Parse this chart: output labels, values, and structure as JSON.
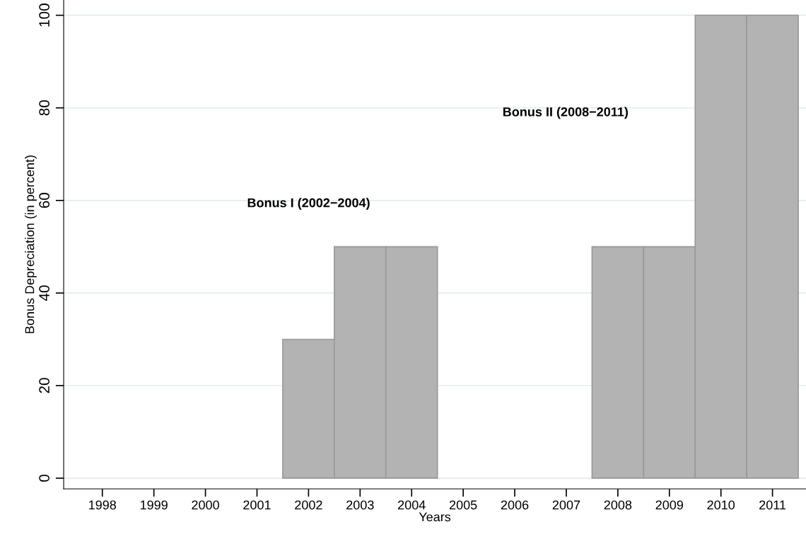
{
  "chart_data": {
    "type": "bar",
    "xlabel": "Years",
    "ylabel": "Bonus Depreciation (in percent)",
    "x": [
      1998,
      1999,
      2000,
      2001,
      2002,
      2003,
      2004,
      2005,
      2006,
      2007,
      2008,
      2009,
      2010,
      2011
    ],
    "values": [
      0,
      0,
      0,
      0,
      30,
      50,
      50,
      0,
      0,
      0,
      50,
      50,
      100,
      100
    ],
    "color": "#b3b3b3",
    "xlim": [
      1997.25,
      2011.65
    ],
    "xticks": [
      1998,
      1999,
      2000,
      2001,
      2002,
      2003,
      2004,
      2005,
      2006,
      2007,
      2008,
      2009,
      2010,
      2011
    ],
    "ylim": [
      -2.3,
      103.3
    ],
    "yticks": [
      0,
      20,
      40,
      60,
      80,
      100
    ],
    "grid": "y",
    "annotations": [
      "Bonus I (2002−2004)",
      "Bonus II (2008−2011)"
    ]
  }
}
